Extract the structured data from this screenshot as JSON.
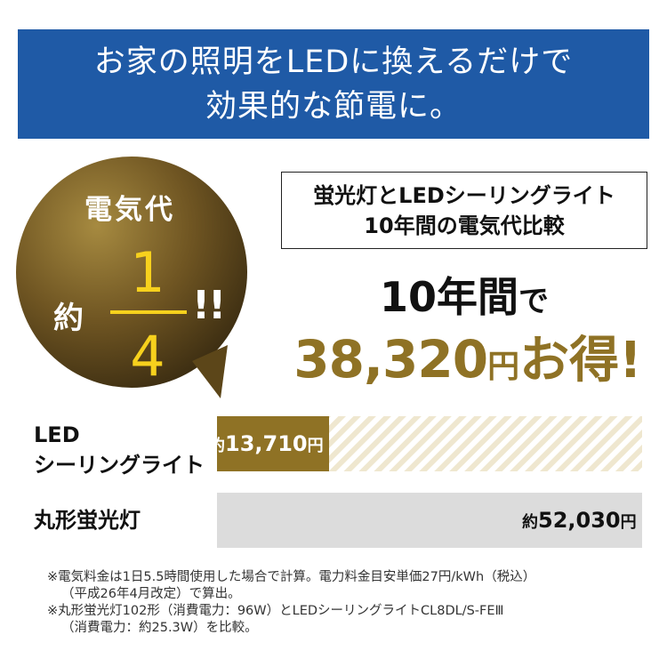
{
  "banner": {
    "line1": "お家の照明をLEDに換えるだけで",
    "line2": "効果的な節電に。"
  },
  "badge": {
    "title": "電気代",
    "prefix": "約",
    "numerator": "1",
    "denominator": "4",
    "exclaim": "!!"
  },
  "comparison": {
    "line1": "蛍光灯とLEDシーリングライト",
    "line2": "10年間の電気代比較"
  },
  "headline": {
    "years": "10年間",
    "particle": "で",
    "amount": "38,320",
    "yen": "円",
    "otoku": "お得!"
  },
  "chart_data": {
    "type": "bar",
    "orientation": "horizontal",
    "title": "",
    "xlabel": "",
    "ylabel": "",
    "unit": "円",
    "categories": [
      "LED シーリングライト",
      "丸形蛍光灯"
    ],
    "values": [
      13710,
      52030
    ],
    "xlim": [
      0,
      52030
    ],
    "grid": false,
    "legend": "none",
    "rows": [
      {
        "label_line1": "LED",
        "label_line2": "シーリングライト",
        "value": 13710,
        "value_prefix": "約",
        "value_text": "13,710",
        "value_unit": "円",
        "color": "#8f7225",
        "remainder_pattern": "diagonal-stripes"
      },
      {
        "label_line1": "丸形蛍光灯",
        "label_line2": "",
        "value": 52030,
        "value_prefix": "約",
        "value_text": "52,030",
        "value_unit": "円",
        "color": "#dcdcdc"
      }
    ]
  },
  "notes": {
    "line1": "※電気料金は1日5.5時間使用した場合で計算。電力料金目安単価27円/kWh（税込）",
    "line2": "（平成26年4月改定）で算出。",
    "line3": "※丸形蛍光灯102形（消費電力：96W）とLEDシーリングライトCL8DL/S-FEⅢ",
    "line4": "（消費電力：約25.3W）を比較。"
  },
  "colors": {
    "banner_bg": "#1f5aa6",
    "gold": "#8f7225",
    "badge_highlight": "#f7d11d",
    "fluorescent_bar": "#dcdcdc",
    "stripe": "#efe7cf"
  }
}
